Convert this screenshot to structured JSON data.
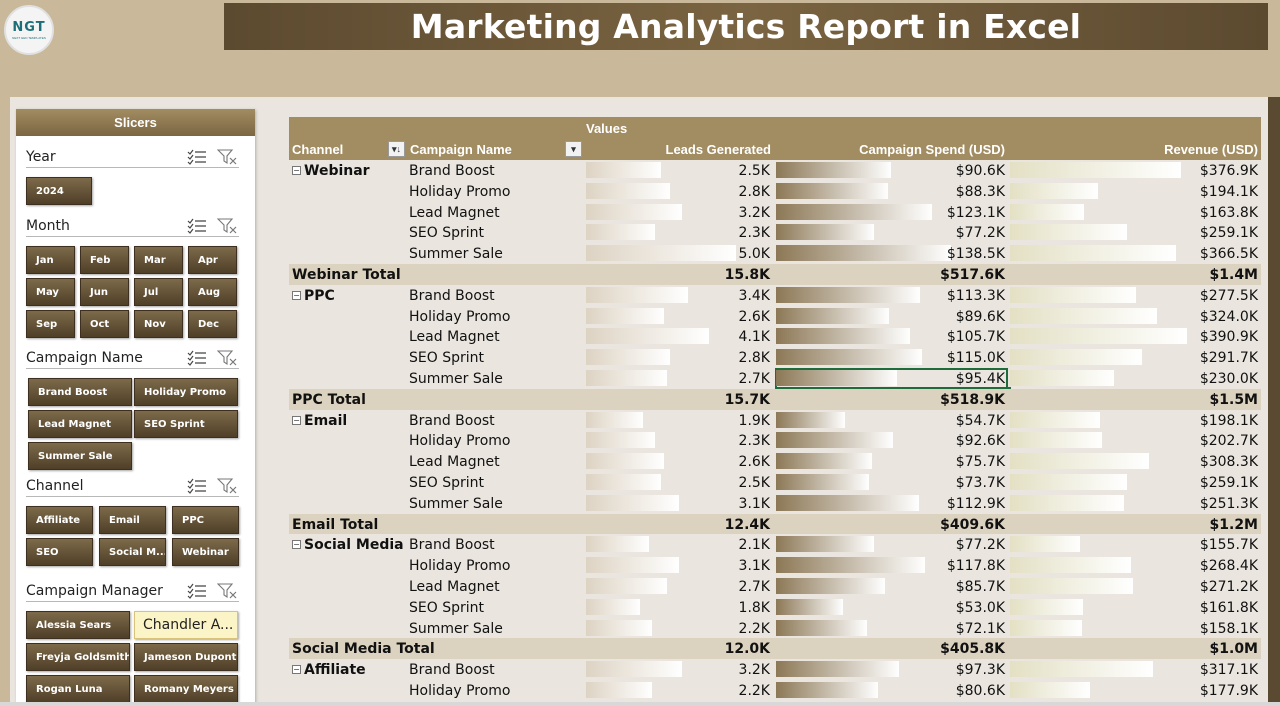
{
  "header": {
    "title": "Marketing Analytics Report in Excel",
    "logo_text": "NGT",
    "logo_subtext": "NEXT GEN TEMPLATES"
  },
  "colors": {
    "accent_dark": "#5c4a30",
    "accent": "#a28c61",
    "background": "#c9b99a",
    "selected_slicer": "#fbf4c6",
    "active_cell_border": "#1e6b3c"
  },
  "slicers": {
    "title": "Slicers",
    "groups": [
      {
        "title": "Year",
        "items": [
          "2024"
        ]
      },
      {
        "title": "Month",
        "items": [
          "Jan",
          "Feb",
          "Mar",
          "Apr",
          "May",
          "Jun",
          "Jul",
          "Aug",
          "Sep",
          "Oct",
          "Nov",
          "Dec"
        ]
      },
      {
        "title": "Campaign Name",
        "items": [
          "Brand Boost",
          "Holiday Promo",
          "Lead Magnet",
          "SEO Sprint",
          "Summer Sale"
        ]
      },
      {
        "title": "Channel",
        "items": [
          "Affiliate",
          "Email",
          "PPC",
          "SEO",
          "Social M...",
          "Webinar"
        ]
      },
      {
        "title": "Campaign Manager",
        "items": [
          "Alessia Sears",
          "Chandler A...",
          "Freyja Goldsmith",
          "Jameson Dupont",
          "Rogan Luna",
          "Romany Meyers"
        ],
        "selected": "Chandler A..."
      }
    ],
    "icons": {
      "multi_select": "multi-select-icon",
      "clear_filter": "clear-filter-icon"
    }
  },
  "pivot": {
    "values_label": "Values",
    "columns": [
      "Channel",
      "Campaign Name",
      "Leads Generated",
      "Campaign Spend (USD)",
      "Revenue (USD)"
    ],
    "groups": [
      {
        "channel": "Webinar",
        "rows": [
          {
            "campaign": "Brand Boost",
            "leads": "2.5K",
            "spend": "$90.6K",
            "revenue": "$376.9K"
          },
          {
            "campaign": "Holiday Promo",
            "leads": "2.8K",
            "spend": "$88.3K",
            "revenue": "$194.1K"
          },
          {
            "campaign": "Lead Magnet",
            "leads": "3.2K",
            "spend": "$123.1K",
            "revenue": "$163.8K"
          },
          {
            "campaign": "SEO Sprint",
            "leads": "2.3K",
            "spend": "$77.2K",
            "revenue": "$259.1K"
          },
          {
            "campaign": "Summer Sale",
            "leads": "5.0K",
            "spend": "$138.5K",
            "revenue": "$366.5K"
          }
        ],
        "total": {
          "label": "Webinar Total",
          "leads": "15.8K",
          "spend": "$517.6K",
          "revenue": "$1.4M"
        }
      },
      {
        "channel": "PPC",
        "rows": [
          {
            "campaign": "Brand Boost",
            "leads": "3.4K",
            "spend": "$113.3K",
            "revenue": "$277.5K"
          },
          {
            "campaign": "Holiday Promo",
            "leads": "2.6K",
            "spend": "$89.6K",
            "revenue": "$324.0K"
          },
          {
            "campaign": "Lead Magnet",
            "leads": "4.1K",
            "spend": "$105.7K",
            "revenue": "$390.9K"
          },
          {
            "campaign": "SEO Sprint",
            "leads": "2.8K",
            "spend": "$115.0K",
            "revenue": "$291.7K"
          },
          {
            "campaign": "Summer Sale",
            "leads": "2.7K",
            "spend": "$95.4K",
            "revenue": "$230.0K"
          }
        ],
        "total": {
          "label": "PPC Total",
          "leads": "15.7K",
          "spend": "$518.9K",
          "revenue": "$1.5M"
        }
      },
      {
        "channel": "Email",
        "rows": [
          {
            "campaign": "Brand Boost",
            "leads": "1.9K",
            "spend": "$54.7K",
            "revenue": "$198.1K"
          },
          {
            "campaign": "Holiday Promo",
            "leads": "2.3K",
            "spend": "$92.6K",
            "revenue": "$202.7K"
          },
          {
            "campaign": "Lead Magnet",
            "leads": "2.6K",
            "spend": "$75.7K",
            "revenue": "$308.3K"
          },
          {
            "campaign": "SEO Sprint",
            "leads": "2.5K",
            "spend": "$73.7K",
            "revenue": "$259.1K"
          },
          {
            "campaign": "Summer Sale",
            "leads": "3.1K",
            "spend": "$112.9K",
            "revenue": "$251.3K"
          }
        ],
        "total": {
          "label": "Email Total",
          "leads": "12.4K",
          "spend": "$409.6K",
          "revenue": "$1.2M"
        }
      },
      {
        "channel": "Social Media",
        "rows": [
          {
            "campaign": "Brand Boost",
            "leads": "2.1K",
            "spend": "$77.2K",
            "revenue": "$155.7K"
          },
          {
            "campaign": "Holiday Promo",
            "leads": "3.1K",
            "spend": "$117.8K",
            "revenue": "$268.4K"
          },
          {
            "campaign": "Lead Magnet",
            "leads": "2.7K",
            "spend": "$85.7K",
            "revenue": "$271.2K"
          },
          {
            "campaign": "SEO Sprint",
            "leads": "1.8K",
            "spend": "$53.0K",
            "revenue": "$161.8K"
          },
          {
            "campaign": "Summer Sale",
            "leads": "2.2K",
            "spend": "$72.1K",
            "revenue": "$158.1K"
          }
        ],
        "total": {
          "label": "Social Media Total",
          "leads": "12.0K",
          "spend": "$405.8K",
          "revenue": "$1.0M"
        }
      },
      {
        "channel": "Affiliate",
        "rows": [
          {
            "campaign": "Brand Boost",
            "leads": "3.2K",
            "spend": "$97.3K",
            "revenue": "$317.1K"
          },
          {
            "campaign": "Holiday Promo",
            "leads": "2.2K",
            "spend": "$80.6K",
            "revenue": "$177.9K"
          }
        ]
      }
    ],
    "active_cell": {
      "channel": "PPC",
      "campaign": "Summer Sale",
      "column": "spend"
    }
  }
}
